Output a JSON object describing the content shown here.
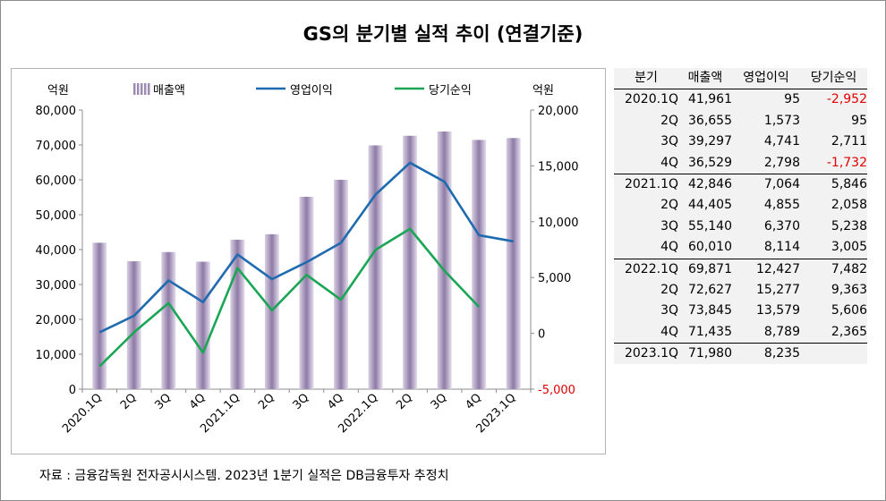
{
  "title": "GS의 분기별 실적 추이 (연결기준)",
  "source": "자료 : 금융감독원 전자공시시스템. 2023년 1분기 실적은 DB금융투자 추정치",
  "chart_data": {
    "type": "bar+line",
    "left_unit": "억원",
    "right_unit": "억원",
    "categories": [
      "2020.1Q",
      "2Q",
      "3Q",
      "4Q",
      "2021.1Q",
      "2Q",
      "3Q",
      "4Q",
      "2022.1Q",
      "2Q",
      "3Q",
      "4Q",
      "2023.1Q"
    ],
    "series": [
      {
        "name": "매출액",
        "type": "bar",
        "axis": "left",
        "color": "#b9a9c9",
        "values": [
          41961,
          36655,
          39297,
          36529,
          42846,
          44405,
          55140,
          60010,
          69871,
          72627,
          73845,
          71435,
          71980
        ]
      },
      {
        "name": "영업이익",
        "type": "line",
        "axis": "right",
        "color": "#1f6bb0",
        "values": [
          95,
          1573,
          4741,
          2798,
          7064,
          4855,
          6370,
          8114,
          12427,
          15277,
          13579,
          8789,
          8235
        ]
      },
      {
        "name": "당기순익",
        "type": "line",
        "axis": "right",
        "color": "#1aa655",
        "values": [
          -2952,
          95,
          2711,
          -1732,
          5846,
          2058,
          5238,
          3005,
          7482,
          9363,
          5606,
          2365,
          null
        ]
      }
    ],
    "y_left": {
      "min": 0,
      "max": 80000,
      "ticks": [
        "0",
        "10,000",
        "20,000",
        "30,000",
        "40,000",
        "50,000",
        "60,000",
        "70,000",
        "80,000"
      ]
    },
    "y_right": {
      "min": -5000,
      "max": 20000,
      "ticks": [
        "-5,000",
        "0",
        "5,000",
        "10,000",
        "15,000",
        "20,000"
      ]
    },
    "grid": false,
    "legend": "top"
  },
  "table": {
    "headers": [
      "분기",
      "매출액",
      "영업이익",
      "당기순익"
    ],
    "rows": [
      {
        "q": "2020.1Q",
        "sales": "41,961",
        "op": "95",
        "net": "-2,952",
        "neg": true
      },
      {
        "q": "2Q",
        "sales": "36,655",
        "op": "1,573",
        "net": "95",
        "neg": false
      },
      {
        "q": "3Q",
        "sales": "39,297",
        "op": "4,741",
        "net": "2,711",
        "neg": false
      },
      {
        "q": "4Q",
        "sales": "36,529",
        "op": "2,798",
        "net": "-1,732",
        "neg": true
      },
      {
        "q": "2021.1Q",
        "sales": "42,846",
        "op": "7,064",
        "net": "5,846",
        "neg": false
      },
      {
        "q": "2Q",
        "sales": "44,405",
        "op": "4,855",
        "net": "2,058",
        "neg": false
      },
      {
        "q": "3Q",
        "sales": "55,140",
        "op": "6,370",
        "net": "5,238",
        "neg": false
      },
      {
        "q": "4Q",
        "sales": "60,010",
        "op": "8,114",
        "net": "3,005",
        "neg": false
      },
      {
        "q": "2022.1Q",
        "sales": "69,871",
        "op": "12,427",
        "net": "7,482",
        "neg": false
      },
      {
        "q": "2Q",
        "sales": "72,627",
        "op": "15,277",
        "net": "9,363",
        "neg": false
      },
      {
        "q": "3Q",
        "sales": "73,845",
        "op": "13,579",
        "net": "5,606",
        "neg": false
      },
      {
        "q": "4Q",
        "sales": "71,435",
        "op": "8,789",
        "net": "2,365",
        "neg": false
      },
      {
        "q": "2023.1Q",
        "sales": "71,980",
        "op": "8,235",
        "net": "",
        "neg": false
      }
    ]
  }
}
